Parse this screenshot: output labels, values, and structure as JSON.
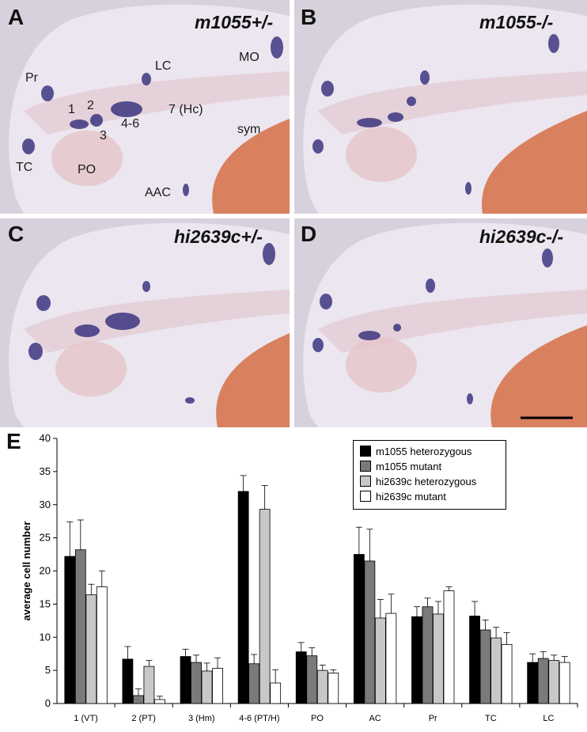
{
  "panels": [
    {
      "label": "A",
      "genotype": "m1055+/-",
      "annotations": {
        "pr": "Pr",
        "lc": "LC",
        "mo": "MO",
        "n1": "1",
        "n2": "2",
        "n3": "3",
        "n46": "4-6",
        "n7": "7 (Hc)",
        "sym": "sym",
        "tc": "TC",
        "po": "PO",
        "aac": "AAC"
      }
    },
    {
      "label": "B",
      "genotype": "m1055-/-"
    },
    {
      "label": "C",
      "genotype": "hi2639c+/-"
    },
    {
      "label": "D",
      "genotype": "hi2639c-/-"
    }
  ],
  "panel_e_label": "E",
  "colors": {
    "embryo": "#e9e4ee",
    "background": "#d6d1dc",
    "stain": "#3d3580",
    "yolk": "#d9805f"
  },
  "chart_data": {
    "type": "bar",
    "ylabel": "average cell number",
    "xlabel": "",
    "ylim": [
      0,
      40
    ],
    "yticks": [
      "0",
      "5",
      "10",
      "15",
      "20",
      "25",
      "30",
      "35",
      "40"
    ],
    "categories": [
      "1 (VT)",
      "2 (PT)",
      "3 (Hm)",
      "4-6 (PT/H)",
      "PO",
      "AC",
      "Pr",
      "TC",
      "LC"
    ],
    "series": [
      {
        "name": "m1055 heterozygous",
        "color": "#000000",
        "values": [
          22.2,
          6.7,
          7.1,
          32.0,
          7.8,
          22.5,
          13.1,
          13.2,
          6.2
        ],
        "errors": [
          5.2,
          1.9,
          1.1,
          2.4,
          1.4,
          4.1,
          1.5,
          2.2,
          1.3
        ]
      },
      {
        "name": "m1055 mutant",
        "color": "#7a7a7a",
        "values": [
          23.2,
          1.2,
          6.2,
          6.0,
          7.2,
          21.5,
          14.6,
          11.1,
          6.8
        ],
        "errors": [
          4.5,
          1.0,
          1.1,
          1.4,
          1.2,
          4.8,
          1.3,
          1.5,
          1.0
        ]
      },
      {
        "name": "hi2639c heterozygous",
        "color": "#c8c8c8",
        "values": [
          16.4,
          5.6,
          4.9,
          29.3,
          5.0,
          12.9,
          13.5,
          9.9,
          6.5
        ],
        "errors": [
          1.6,
          0.9,
          1.2,
          3.6,
          0.8,
          2.8,
          1.9,
          1.6,
          0.8
        ]
      },
      {
        "name": "hi2639c mutant",
        "color": "#ffffff",
        "values": [
          17.6,
          0.6,
          5.3,
          3.1,
          4.6,
          13.6,
          17.0,
          8.9,
          6.2
        ],
        "errors": [
          2.4,
          0.5,
          1.6,
          2.0,
          0.5,
          2.9,
          0.6,
          1.8,
          0.9
        ]
      }
    ],
    "legend_position": "top-right",
    "grid": false
  }
}
